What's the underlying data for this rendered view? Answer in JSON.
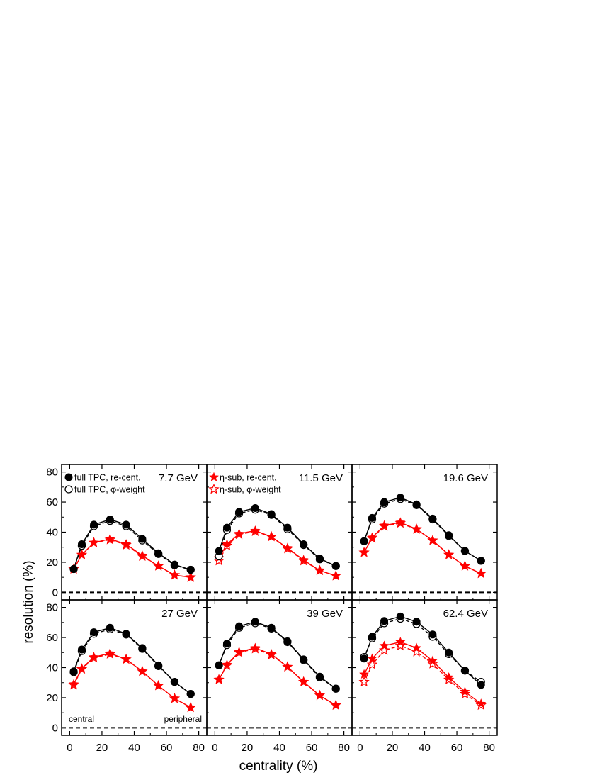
{
  "chart_data": {
    "type": "line",
    "xlabel": "centrality (%)",
    "ylabel": "resolution (%)",
    "xlim": [
      -5,
      85
    ],
    "ylim": [
      -5,
      85
    ],
    "xticks": [
      0,
      20,
      40,
      60,
      80
    ],
    "yticks": [
      0,
      20,
      40,
      60,
      80
    ],
    "reference_line": 0,
    "notes": {
      "left": "central",
      "right": "peripheral"
    },
    "legend": {
      "panel_1": [
        {
          "label": "full TPC, re-cent.",
          "marker": "filled-circle",
          "color": "#000000"
        },
        {
          "label": "full TPC, φ-weight",
          "marker": "open-circle",
          "color": "#000000"
        }
      ],
      "panel_2": [
        {
          "label": "η-sub, re-cent.",
          "marker": "filled-star",
          "color": "#ff0000"
        },
        {
          "label": "η-sub, φ-weight",
          "marker": "open-star",
          "color": "#ff0000"
        }
      ]
    },
    "x": [
      2.5,
      7.5,
      15,
      25,
      35,
      45,
      55,
      65,
      75
    ],
    "panels": [
      {
        "energy": "7.7 GeV",
        "series": [
          {
            "name": "full TPC, re-cent.",
            "values": [
              15.5,
              32,
              45,
              48.5,
              45,
              35.5,
              26,
              18.5,
              15
            ]
          },
          {
            "name": "full TPC, φ-weight",
            "values": [
              15.5,
              31,
              44,
              47.5,
              44,
              34.5,
              25.5,
              18,
              15
            ]
          },
          {
            "name": "η-sub, re-cent.",
            "values": [
              15.5,
              25,
              33,
              35.5,
              32,
              24.5,
              17.5,
              11.5,
              10
            ]
          },
          {
            "name": "η-sub, φ-weight",
            "values": [
              15.5,
              25,
              33,
              35,
              31.5,
              24,
              17.5,
              11.5,
              10
            ]
          }
        ]
      },
      {
        "energy": "11.5 GeV",
        "series": [
          {
            "name": "full TPC, re-cent.",
            "values": [
              27.5,
              43,
              53.5,
              56,
              52,
              43,
              32,
              22.5,
              17.5
            ]
          },
          {
            "name": "full TPC, φ-weight",
            "values": [
              24,
              41.5,
              52.5,
              55,
              51.5,
              42,
              31.5,
              22,
              17.5
            ]
          },
          {
            "name": "η-sub, re-cent.",
            "values": [
              23,
              32,
              39,
              41,
              37,
              29.5,
              21.5,
              14.5,
              11
            ]
          },
          {
            "name": "η-sub, φ-weight",
            "values": [
              21,
              31,
              38.5,
              40.5,
              37,
              29,
              21,
              14.5,
              11
            ]
          }
        ]
      },
      {
        "energy": "19.6 GeV",
        "series": [
          {
            "name": "full TPC, re-cent.",
            "values": [
              34,
              49.5,
              60,
              63,
              58.5,
              49,
              38,
              27.5,
              21
            ]
          },
          {
            "name": "full TPC, φ-weight",
            "values": [
              34,
              48.5,
              59,
              62,
              58,
              48.5,
              37.5,
              27.5,
              21
            ]
          },
          {
            "name": "η-sub, re-cent.",
            "values": [
              26.5,
              36.5,
              44.5,
              46.5,
              42,
              34.5,
              25,
              17.5,
              12.5
            ]
          },
          {
            "name": "η-sub, φ-weight",
            "values": [
              26.5,
              36,
              44,
              46,
              42,
              34.5,
              25,
              17.5,
              12.5
            ]
          }
        ]
      },
      {
        "energy": "27 GeV",
        "series": [
          {
            "name": "full TPC, re-cent.",
            "values": [
              37.5,
              52,
              63.5,
              66.5,
              62.5,
              53,
              41.5,
              30.5,
              22.5
            ]
          },
          {
            "name": "full TPC, φ-weight",
            "values": [
              37,
              51,
              62.5,
              65.5,
              62,
              52.5,
              41,
              30.5,
              22.5
            ]
          },
          {
            "name": "η-sub, re-cent.",
            "values": [
              29,
              39.5,
              47,
              49.5,
              45.5,
              37.5,
              28,
              19.5,
              13.5
            ]
          },
          {
            "name": "η-sub, φ-weight",
            "values": [
              28.5,
              39,
              46.5,
              49,
              45.5,
              37.5,
              28,
              19.5,
              13.5
            ]
          }
        ]
      },
      {
        "energy": "39 GeV",
        "series": [
          {
            "name": "full TPC, re-cent.",
            "values": [
              41.5,
              56,
              67.5,
              70.5,
              66.5,
              57.5,
              45.5,
              34,
              26
            ]
          },
          {
            "name": "full TPC, φ-weight",
            "values": [
              41.5,
              55,
              66.5,
              69.5,
              66,
              57,
              45,
              33.5,
              26
            ]
          },
          {
            "name": "η-sub, re-cent.",
            "values": [
              32,
              42,
              50.5,
              53,
              49,
              40.5,
              30.5,
              21.5,
              15
            ]
          },
          {
            "name": "η-sub, φ-weight",
            "values": [
              32,
              41.5,
              50,
              52.5,
              48.5,
              40.5,
              30.5,
              21.5,
              15
            ]
          }
        ]
      },
      {
        "energy": "62.4 GeV",
        "series": [
          {
            "name": "full TPC, re-cent.",
            "values": [
              46,
              60.5,
              71,
              74,
              70.5,
              62,
              50,
              38,
              28.5
            ]
          },
          {
            "name": "full TPC, φ-weight",
            "values": [
              47,
              59.5,
              69.5,
              72.5,
              69,
              60.5,
              49,
              38,
              30.5
            ]
          },
          {
            "name": "η-sub, re-cent.",
            "values": [
              35.5,
              46,
              54.5,
              57,
              53,
              44.5,
              33.5,
              24,
              16
            ]
          },
          {
            "name": "η-sub, φ-weight",
            "values": [
              30.5,
              42,
              51.5,
              54.5,
              50.5,
              42.5,
              32,
              22.5,
              15
            ]
          }
        ]
      }
    ],
    "colors": {
      "full TPC": "#000000",
      "η-sub": "#ff0000"
    }
  }
}
